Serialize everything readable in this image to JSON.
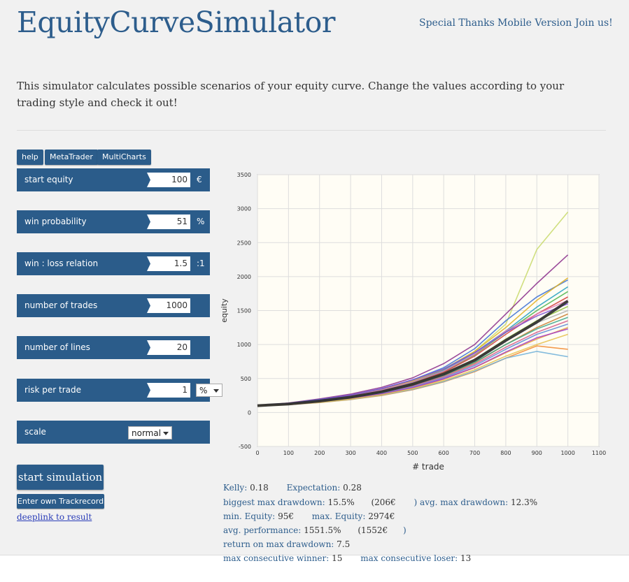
{
  "header": {
    "title": "EquityCurveSimulator",
    "nav": [
      "Special Thanks",
      "Mobile Version",
      "Join us!"
    ]
  },
  "intro": "This simulator calculates possible scenarios of your equity curve. Change the values according to your trading style and check it out!",
  "tabs": [
    "help",
    "MetaTrader",
    "MultiCharts"
  ],
  "form": {
    "start_equity": {
      "label": "start equity",
      "value": "100",
      "unit": "€"
    },
    "win_probability": {
      "label": "win probability",
      "value": "51",
      "unit": "%"
    },
    "win_loss": {
      "label": "win : loss relation",
      "value": "1.5",
      "unit": ":1"
    },
    "num_trades": {
      "label": "number of trades",
      "value": "1000"
    },
    "num_lines": {
      "label": "number of lines",
      "value": "20"
    },
    "risk": {
      "label": "risk per trade",
      "value": "1",
      "select": "%"
    },
    "scale": {
      "label": "scale",
      "select": "normal"
    }
  },
  "buttons": {
    "start": "start simulation",
    "trackrecord": "Enter own Trackrecord",
    "deeplink": "deeplink to result"
  },
  "stats": {
    "kelly_label": "Kelly:",
    "kelly": "0.18",
    "expectation_label": "Expectation:",
    "expectation": "0.28",
    "biggest_dd_label": "biggest max drawdown:",
    "biggest_dd": "15.5%",
    "biggest_dd_abs": "(206€",
    "biggest_dd_close": ")",
    "avg_dd_label": "avg. max drawdown:",
    "avg_dd": "12.3%",
    "min_eq_label": "min. Equity:",
    "min_eq": "95€",
    "max_eq_label": "max. Equity:",
    "max_eq": "2974€",
    "avg_perf_label": "avg. performance:",
    "avg_perf": "1551.5%",
    "avg_perf_abs": "(1552€",
    "avg_perf_close": ")",
    "romd_label": "return on max drawdown:",
    "romd": "7.5",
    "max_win_label": "max consecutive winner:",
    "max_win": "15",
    "max_lose_label": "max consecutive loser:",
    "max_lose": "13"
  },
  "colors": {
    "brand": "#2b5c8a",
    "title": "#2d5d8c",
    "plot_bg": "#fffdf5",
    "mean_line": "#2b2b2b"
  },
  "chart_data": {
    "type": "line",
    "xlabel": "# trade",
    "ylabel": "equity",
    "xlim": [
      0,
      1100
    ],
    "ylim": [
      -500,
      3500
    ],
    "xticks": [
      0,
      100,
      200,
      300,
      400,
      500,
      600,
      700,
      800,
      900,
      1000,
      1100
    ],
    "yticks": [
      -500,
      0,
      500,
      1000,
      1500,
      2000,
      2500,
      3000,
      3500
    ],
    "grid": true,
    "x": [
      0,
      100,
      200,
      300,
      400,
      500,
      600,
      700,
      800,
      900,
      1000
    ],
    "series": [
      {
        "color": "#c8d96a",
        "values": [
          100,
          135,
          190,
          250,
          340,
          470,
          640,
          900,
          1300,
          2400,
          2950
        ]
      },
      {
        "color": "#8a2b8a",
        "values": [
          100,
          140,
          200,
          270,
          370,
          510,
          720,
          1000,
          1450,
          1900,
          2320
        ]
      },
      {
        "color": "#3a6fd4",
        "values": [
          100,
          135,
          190,
          255,
          350,
          480,
          660,
          940,
          1350,
          1700,
          1950
        ]
      },
      {
        "color": "#e0b020",
        "values": [
          100,
          130,
          180,
          250,
          340,
          460,
          630,
          900,
          1250,
          1650,
          1980
        ]
      },
      {
        "color": "#1f9fc0",
        "values": [
          100,
          130,
          180,
          240,
          330,
          450,
          620,
          880,
          1200,
          1550,
          1850
        ]
      },
      {
        "color": "#4bb34b",
        "values": [
          100,
          128,
          176,
          236,
          320,
          440,
          600,
          850,
          1180,
          1500,
          1780
        ]
      },
      {
        "color": "#d23b3b",
        "values": [
          100,
          125,
          170,
          230,
          310,
          430,
          590,
          830,
          1150,
          1450,
          1700
        ]
      },
      {
        "color": "#e07ab8",
        "values": [
          100,
          128,
          175,
          240,
          330,
          450,
          610,
          860,
          1200,
          1450,
          1650
        ]
      },
      {
        "color": "#7b4fd6",
        "values": [
          100,
          132,
          185,
          255,
          350,
          480,
          640,
          880,
          1180,
          1420,
          1600
        ]
      },
      {
        "color": "#8fbf3a",
        "values": [
          100,
          125,
          168,
          226,
          305,
          415,
          570,
          780,
          1080,
          1350,
          1560
        ]
      },
      {
        "color": "#b0b0b0",
        "values": [
          100,
          124,
          166,
          222,
          300,
          410,
          560,
          760,
          1050,
          1320,
          1500
        ]
      },
      {
        "color": "#c87b2e",
        "values": [
          100,
          122,
          160,
          214,
          290,
          395,
          540,
          730,
          1000,
          1250,
          1450
        ]
      },
      {
        "color": "#3aa68a",
        "values": [
          100,
          124,
          164,
          218,
          295,
          400,
          545,
          740,
          1000,
          1230,
          1400
        ]
      },
      {
        "color": "#d45a8a",
        "values": [
          100,
          121,
          158,
          210,
          285,
          385,
          525,
          710,
          960,
          1180,
          1350
        ]
      },
      {
        "color": "#5a8ad4",
        "values": [
          100,
          120,
          156,
          206,
          278,
          375,
          510,
          690,
          930,
          1150,
          1300
        ]
      },
      {
        "color": "#e6a23a",
        "values": [
          100,
          118,
          152,
          200,
          268,
          360,
          490,
          660,
          880,
          1080,
          1250
        ]
      },
      {
        "color": "#a43ac8",
        "values": [
          100,
          119,
          154,
          202,
          270,
          365,
          495,
          665,
          890,
          1100,
          1230
        ]
      },
      {
        "color": "#f28a30",
        "values": [
          100,
          115,
          146,
          190,
          250,
          335,
          450,
          600,
          800,
          980,
          930
        ]
      },
      {
        "color": "#6fb0d8",
        "values": [
          100,
          116,
          148,
          192,
          255,
          340,
          455,
          610,
          800,
          900,
          820
        ]
      },
      {
        "color": "#e5c04a",
        "values": [
          100,
          117,
          150,
          196,
          260,
          350,
          470,
          630,
          830,
          1000,
          1150
        ]
      },
      {
        "name": "mean",
        "color": "#2b2b2b",
        "width": 4,
        "values": [
          100,
          125,
          168,
          226,
          305,
          415,
          565,
          770,
          1060,
          1330,
          1640
        ]
      }
    ]
  }
}
